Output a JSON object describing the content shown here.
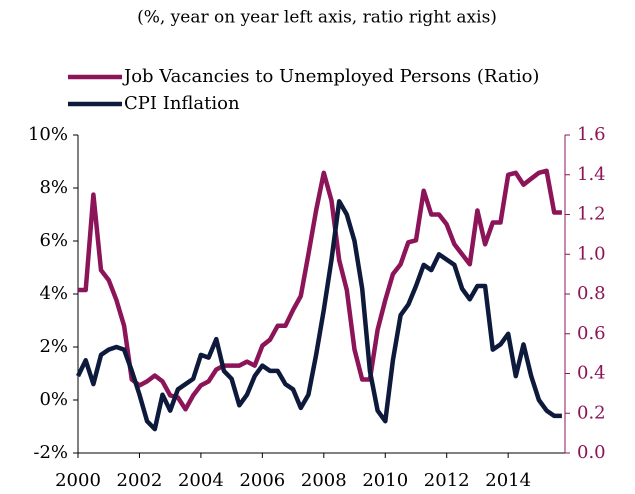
{
  "chart_data": {
    "type": "line",
    "subtitle": "(%, year on year left axis, ratio right axis)",
    "x": [
      2000,
      2000.25,
      2000.5,
      2000.75,
      2001,
      2001.25,
      2001.5,
      2001.75,
      2002,
      2002.25,
      2002.5,
      2002.75,
      2003,
      2003.25,
      2003.5,
      2003.75,
      2004,
      2004.25,
      2004.5,
      2004.75,
      2005,
      2005.25,
      2005.5,
      2005.75,
      2006,
      2006.25,
      2006.5,
      2006.75,
      2007,
      2007.25,
      2007.5,
      2007.75,
      2008,
      2008.25,
      2008.5,
      2008.75,
      2009,
      2009.25,
      2009.5,
      2009.75,
      2010,
      2010.25,
      2010.5,
      2010.75,
      2011,
      2011.25,
      2011.5,
      2011.75,
      2012,
      2012.25,
      2012.5,
      2012.75,
      2013,
      2013.25,
      2013.5,
      2013.75,
      2014,
      2014.25,
      2014.5,
      2014.75,
      2015,
      2015.25,
      2015.5,
      2015.75
    ],
    "series": [
      {
        "name": "Job Vacancies to Unemployed Persons (Ratio)",
        "color": "#8c1458",
        "axis": "y2",
        "values": [
          0.82,
          0.82,
          1.3,
          0.92,
          0.87,
          0.77,
          0.64,
          0.37,
          0.34,
          0.36,
          0.39,
          0.36,
          0.29,
          0.28,
          0.22,
          0.29,
          0.34,
          0.36,
          0.42,
          0.44,
          0.44,
          0.44,
          0.46,
          0.44,
          0.54,
          0.57,
          0.64,
          0.64,
          0.72,
          0.79,
          1.0,
          1.22,
          1.41,
          1.27,
          0.97,
          0.82,
          0.52,
          0.37,
          0.37,
          0.62,
          0.77,
          0.9,
          0.95,
          1.06,
          1.07,
          1.32,
          1.2,
          1.2,
          1.15,
          1.05,
          1.0,
          0.95,
          1.22,
          1.05,
          1.16,
          1.16,
          1.4,
          1.41,
          1.35,
          1.38,
          1.41,
          1.42,
          1.21,
          1.21
        ]
      },
      {
        "name": "CPI Inflation",
        "color": "#0e1a3c",
        "values": [
          0.9,
          1.5,
          0.6,
          1.7,
          1.9,
          2.0,
          1.9,
          1.1,
          0.2,
          -0.8,
          -1.1,
          0.2,
          -0.4,
          0.4,
          0.6,
          0.8,
          1.7,
          1.6,
          2.3,
          1.1,
          0.8,
          -0.2,
          0.2,
          0.9,
          1.3,
          1.1,
          1.1,
          0.6,
          0.4,
          -0.3,
          0.2,
          1.7,
          3.4,
          5.3,
          7.5,
          7.0,
          6.0,
          4.2,
          1.1,
          -0.4,
          -0.8,
          1.5,
          3.2,
          3.6,
          4.3,
          5.1,
          4.9,
          5.5,
          5.3,
          5.1,
          4.2,
          3.8,
          4.3,
          4.3,
          1.9,
          2.1,
          2.5,
          0.9,
          2.1,
          0.9,
          0.0,
          -0.4,
          -0.6,
          -0.6
        ]
      }
    ],
    "xlim": [
      2000,
      2015.85
    ],
    "xticks": [
      2000,
      2002,
      2004,
      2006,
      2008,
      2010,
      2012,
      2014
    ],
    "ylim": [
      -2,
      10
    ],
    "yticks": [
      {
        "value": -2,
        "label": "-2%"
      },
      {
        "value": 0,
        "label": "0%"
      },
      {
        "value": 2,
        "label": "2%"
      },
      {
        "value": 4,
        "label": "4%"
      },
      {
        "value": 6,
        "label": "6%"
      },
      {
        "value": 8,
        "label": "8%"
      },
      {
        "value": 10,
        "label": "10%"
      }
    ],
    "y2lim": [
      0,
      1.6
    ],
    "y2ticks": [
      {
        "value": 0,
        "label": "0.0"
      },
      0.2,
      0.4,
      0.6,
      0.8,
      {
        "value": 1,
        "label": "1.0"
      },
      1.2,
      1.4,
      1.6
    ],
    "y2color": "#8c1458"
  }
}
